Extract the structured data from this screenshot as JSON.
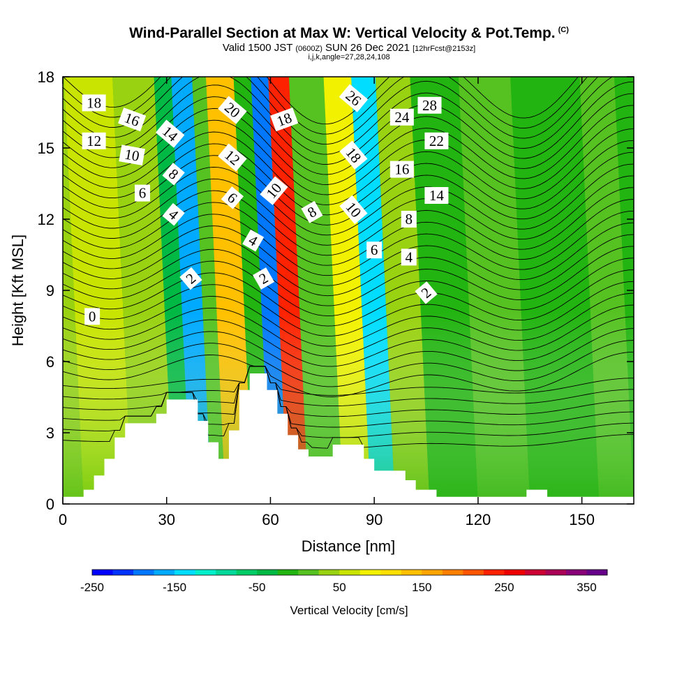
{
  "header": {
    "title": "Wind-Parallel Section at Max W: Vertical Velocity & Pot.Temp.",
    "copyright": "(C)",
    "valid_prefix": "Valid 1500 JST",
    "valid_utc": "(0600Z)",
    "valid_suffix": "SUN 26 Dec 2021",
    "forecast": "[12hrFcst@2153z]",
    "params": "i,j,k,angle=27,28,24,108"
  },
  "chart_data": {
    "type": "heatmap",
    "title": "Wind-Parallel Section at Max W: Vertical Velocity & Pot.Temp.",
    "xlabel": "Distance [nm]",
    "ylabel": "Height [Kft MSL]",
    "xlim": [
      0,
      165
    ],
    "ylim": [
      0,
      18
    ],
    "x_ticks": [
      0,
      30,
      60,
      90,
      120,
      150
    ],
    "y_ticks": [
      0,
      3,
      6,
      9,
      12,
      15,
      18
    ],
    "colorbar": {
      "label": "Vertical Velocity [cm/s]",
      "range": [
        -250,
        375
      ],
      "tick_values": [
        -250,
        -150,
        -50,
        50,
        150,
        250,
        350
      ],
      "colors": [
        "#0000ff",
        "#0033ff",
        "#0077ff",
        "#00aaff",
        "#00ddff",
        "#00f0cc",
        "#00d99a",
        "#00cc66",
        "#00b844",
        "#22b411",
        "#55c222",
        "#99d211",
        "#c8e400",
        "#f2f200",
        "#ffe000",
        "#ffc000",
        "#ffa500",
        "#ff8000",
        "#ff5500",
        "#ff2200",
        "#ee0000",
        "#cc0033",
        "#aa0055",
        "#880077",
        "#660088"
      ]
    },
    "velocity_bands": [
      {
        "x": 0,
        "w": 6,
        "value": 25
      },
      {
        "x": 6,
        "w": 14,
        "value": 55
      },
      {
        "x": 20,
        "w": 12,
        "value": 25
      },
      {
        "x": 32,
        "w": 5,
        "value": -45
      },
      {
        "x": 37,
        "w": 6,
        "value": -160
      },
      {
        "x": 43,
        "w": 4,
        "value": 20
      },
      {
        "x": 47,
        "w": 8,
        "value": 140
      },
      {
        "x": 55,
        "w": 5,
        "value": -20
      },
      {
        "x": 60,
        "w": 5,
        "value": -200
      },
      {
        "x": 65,
        "w": 6,
        "value": 230
      },
      {
        "x": 71,
        "w": 10,
        "value": 10
      },
      {
        "x": 81,
        "w": 8,
        "value": 90
      },
      {
        "x": 89,
        "w": 7,
        "value": -130
      },
      {
        "x": 96,
        "w": 10,
        "value": 30
      },
      {
        "x": 106,
        "w": 14,
        "value": -10
      },
      {
        "x": 120,
        "w": 15,
        "value": 20
      },
      {
        "x": 135,
        "w": 20,
        "value": -20
      },
      {
        "x": 155,
        "w": 10,
        "value": 15
      }
    ],
    "terrain_height_kft": [
      {
        "x": 0,
        "h": 0.3
      },
      {
        "x": 6,
        "h": 0.6
      },
      {
        "x": 9,
        "h": 1.2
      },
      {
        "x": 12,
        "h": 1.9
      },
      {
        "x": 15,
        "h": 2.8
      },
      {
        "x": 18,
        "h": 3.4
      },
      {
        "x": 27,
        "h": 3.8
      },
      {
        "x": 30,
        "h": 4.4
      },
      {
        "x": 36,
        "h": 4.4
      },
      {
        "x": 39,
        "h": 3.5
      },
      {
        "x": 42,
        "h": 2.6
      },
      {
        "x": 45,
        "h": 1.9
      },
      {
        "x": 48,
        "h": 3.1
      },
      {
        "x": 51,
        "h": 4.8
      },
      {
        "x": 54,
        "h": 5.5
      },
      {
        "x": 59,
        "h": 4.8
      },
      {
        "x": 62,
        "h": 3.8
      },
      {
        "x": 65,
        "h": 2.9
      },
      {
        "x": 68,
        "h": 2.3
      },
      {
        "x": 71,
        "h": 2.0
      },
      {
        "x": 78,
        "h": 2.5
      },
      {
        "x": 87,
        "h": 1.9
      },
      {
        "x": 90,
        "h": 1.4
      },
      {
        "x": 99,
        "h": 1.0
      },
      {
        "x": 102,
        "h": 0.6
      },
      {
        "x": 108,
        "h": 0.3
      },
      {
        "x": 134,
        "h": 0.6
      },
      {
        "x": 140,
        "h": 0.3
      },
      {
        "x": 165,
        "h": 0.3
      }
    ],
    "contour_labels": [
      {
        "text": "18",
        "x": 9,
        "y": 16.9,
        "rot": 0
      },
      {
        "text": "16",
        "x": 20,
        "y": 16.2,
        "rot": 20
      },
      {
        "text": "14",
        "x": 31,
        "y": 15.6,
        "rot": 40
      },
      {
        "text": "12",
        "x": 9,
        "y": 15.3,
        "rot": 0
      },
      {
        "text": "10",
        "x": 20,
        "y": 14.7,
        "rot": 10
      },
      {
        "text": "8",
        "x": 32,
        "y": 13.9,
        "rot": 40
      },
      {
        "text": "6",
        "x": 23,
        "y": 13.1,
        "rot": 0
      },
      {
        "text": "4",
        "x": 32,
        "y": 12.2,
        "rot": 40
      },
      {
        "text": "2",
        "x": 37,
        "y": 9.5,
        "rot": -40
      },
      {
        "text": "0",
        "x": 8.5,
        "y": 7.9,
        "rot": 0
      },
      {
        "text": "20",
        "x": 49,
        "y": 16.6,
        "rot": 40
      },
      {
        "text": "12",
        "x": 49,
        "y": 14.6,
        "rot": 40
      },
      {
        "text": "6",
        "x": 49,
        "y": 12.9,
        "rot": 40
      },
      {
        "text": "4",
        "x": 55,
        "y": 11.1,
        "rot": 30
      },
      {
        "text": "2",
        "x": 58,
        "y": 9.5,
        "rot": -30
      },
      {
        "text": "18",
        "x": 64,
        "y": 16.2,
        "rot": -20
      },
      {
        "text": "10",
        "x": 61,
        "y": 13.2,
        "rot": -50
      },
      {
        "text": "8",
        "x": 72,
        "y": 12.3,
        "rot": -30
      },
      {
        "text": "26",
        "x": 84,
        "y": 17.1,
        "rot": 40
      },
      {
        "text": "18",
        "x": 84,
        "y": 14.7,
        "rot": 50
      },
      {
        "text": "10",
        "x": 84,
        "y": 12.4,
        "rot": 50
      },
      {
        "text": "6",
        "x": 90,
        "y": 10.7,
        "rot": 0
      },
      {
        "text": "24",
        "x": 98,
        "y": 16.3,
        "rot": 0
      },
      {
        "text": "16",
        "x": 98,
        "y": 14.1,
        "rot": 0
      },
      {
        "text": "8",
        "x": 100,
        "y": 12.0,
        "rot": 0
      },
      {
        "text": "4",
        "x": 100,
        "y": 10.4,
        "rot": 0
      },
      {
        "text": "28",
        "x": 106,
        "y": 16.8,
        "rot": 0
      },
      {
        "text": "22",
        "x": 108,
        "y": 15.3,
        "rot": 0
      },
      {
        "text": "14",
        "x": 108,
        "y": 13.0,
        "rot": 0
      },
      {
        "text": "2",
        "x": 105,
        "y": 8.9,
        "rot": -40
      }
    ]
  }
}
